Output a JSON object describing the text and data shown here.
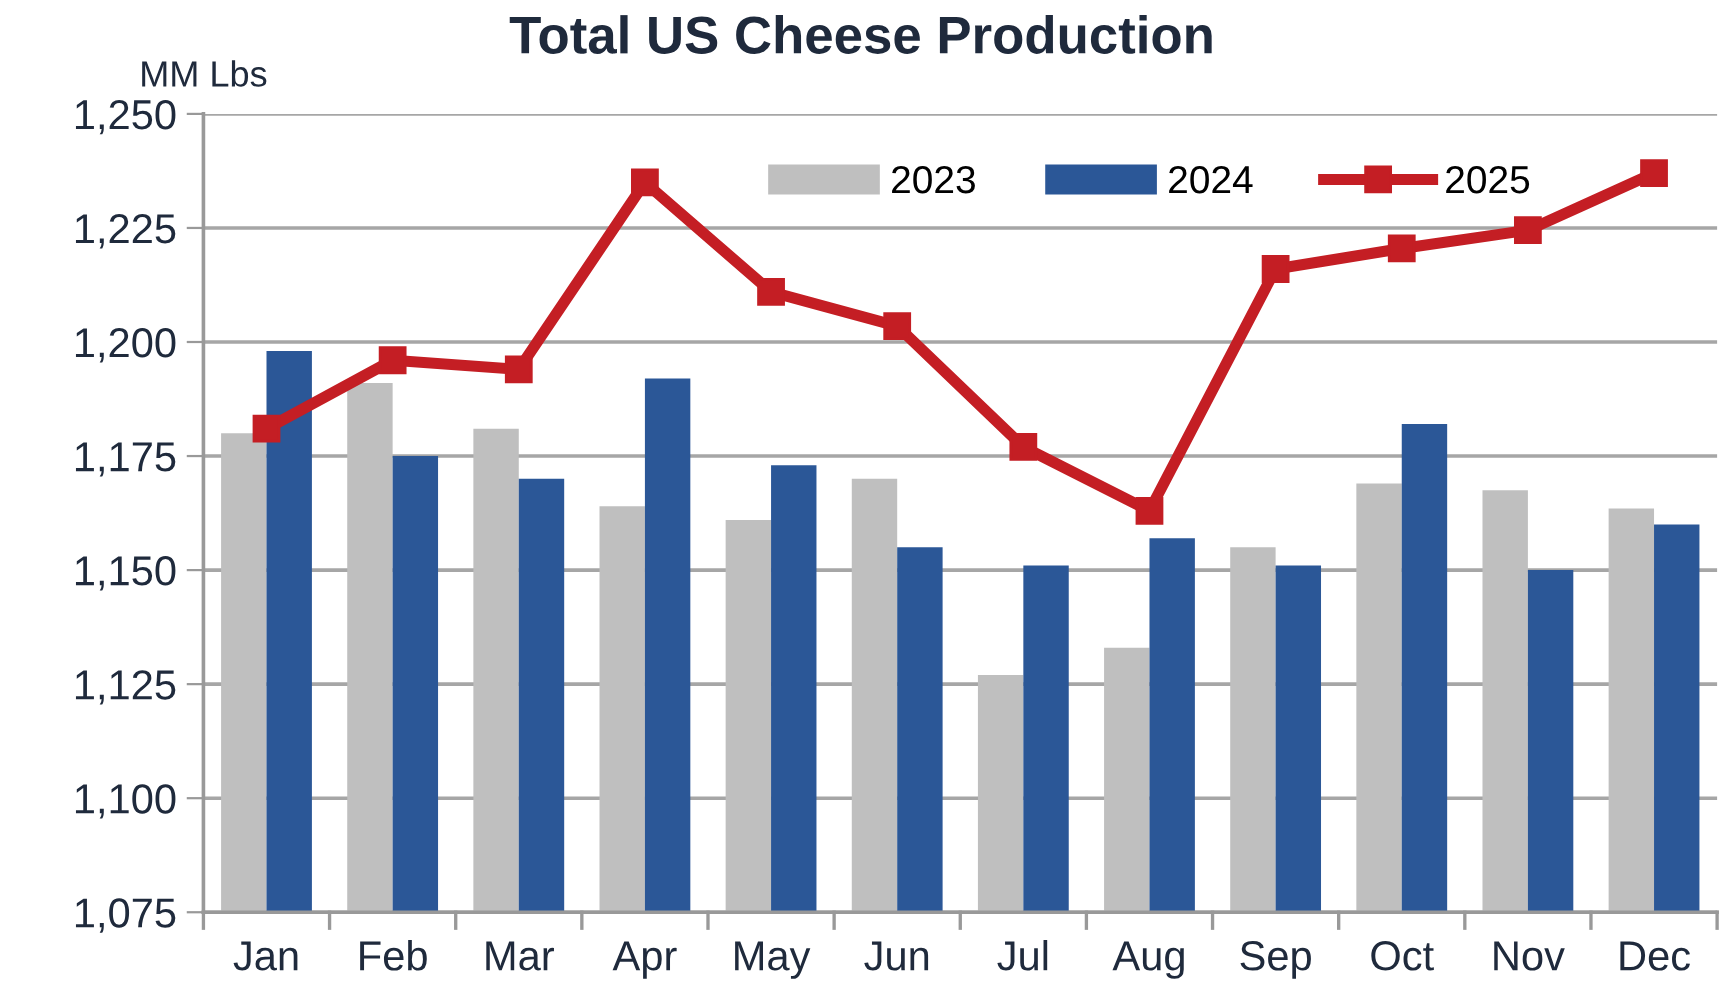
{
  "chart_data": {
    "type": "bar",
    "title": "Total US Cheese Production",
    "ylabel": "MM Lbs",
    "categories": [
      "Jan",
      "Feb",
      "Mar",
      "Apr",
      "May",
      "Jun",
      "Jul",
      "Aug",
      "Sep",
      "Oct",
      "Nov",
      "Dec"
    ],
    "series": [
      {
        "name": "2023",
        "color": "#bfbfbf",
        "values": [
          1180,
          1191,
          1181,
          1164,
          1161,
          1170,
          1127,
          1133,
          1155,
          1169,
          1167.5,
          1163.5
        ]
      },
      {
        "name": "2024",
        "color": "#2b5797",
        "values": [
          1198,
          1175,
          1170,
          1192,
          1173,
          1155,
          1151,
          1157,
          1151,
          1182,
          1150,
          1160
        ]
      },
      {
        "name": "2025",
        "type": "line",
        "color": "#c41e24",
        "marker": "square",
        "line_style": "solid",
        "values": [
          1181,
          1196,
          1194,
          1235,
          1211,
          1203.5,
          1177,
          1163,
          1216,
          1220.5,
          1224.5,
          1237
        ]
      }
    ],
    "ylim": [
      1075,
      1250
    ],
    "yticks": [
      {
        "value": 1075,
        "label": "1,075"
      },
      {
        "value": 1100,
        "label": "1,100"
      },
      {
        "value": 1125,
        "label": "1,125"
      },
      {
        "value": 1150,
        "label": "1,150"
      },
      {
        "value": 1175,
        "label": "1,175"
      },
      {
        "value": 1200,
        "label": "1,200"
      },
      {
        "value": 1225,
        "label": "1,225"
      },
      {
        "value": 1250,
        "label": "1,250"
      }
    ],
    "grid": "y",
    "legend": "top right"
  }
}
